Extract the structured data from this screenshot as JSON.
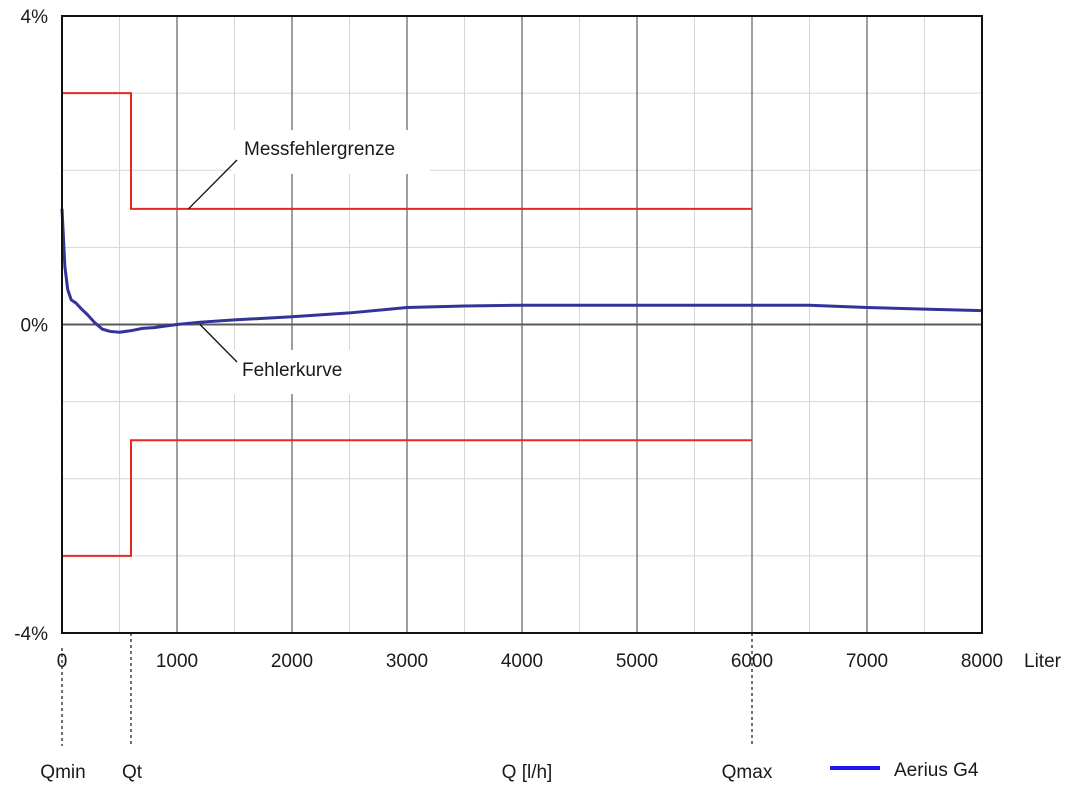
{
  "chart_data": {
    "type": "line",
    "xlim": [
      0,
      8000
    ],
    "ylim": [
      -4,
      4
    ],
    "x_ticks": [
      {
        "value": 0,
        "label": "0"
      },
      {
        "value": 1000,
        "label": "1000"
      },
      {
        "value": 2000,
        "label": "2000"
      },
      {
        "value": 3000,
        "label": "3000"
      },
      {
        "value": 4000,
        "label": "4000"
      },
      {
        "value": 5000,
        "label": "5000"
      },
      {
        "value": 6000,
        "label": "6000"
      },
      {
        "value": 7000,
        "label": "7000"
      },
      {
        "value": 8000,
        "label": "8000"
      }
    ],
    "x_unit_label": "Liter",
    "y_ticks": [
      {
        "value": 4,
        "label": "4%"
      },
      {
        "value": 0,
        "label": "0%"
      },
      {
        "value": -4,
        "label": "-4%"
      }
    ],
    "grid": true,
    "xlabel": "Q [l/h]",
    "markers": [
      {
        "label": "Qmin",
        "x": 0
      },
      {
        "label": "Qt",
        "x": 600
      },
      {
        "label": "Qmax",
        "x": 6000
      }
    ],
    "error_limits": {
      "upper": {
        "x": [
          0,
          600,
          600,
          6000
        ],
        "y": [
          3,
          3,
          1.5,
          1.5
        ]
      },
      "lower": {
        "x": [
          0,
          600,
          600,
          6000
        ],
        "y": [
          -3,
          -3,
          -1.5,
          -1.5
        ]
      },
      "color": "#e8281e"
    },
    "series": [
      {
        "name": "Aerius G4",
        "color": "#333399",
        "legend_color": "#1a1aee",
        "x": [
          0,
          10,
          25,
          50,
          80,
          120,
          170,
          220,
          280,
          350,
          420,
          500,
          600,
          700,
          800,
          900,
          1000,
          1200,
          1500,
          2000,
          2500,
          3000,
          3500,
          4000,
          4500,
          5000,
          5500,
          6000,
          6500,
          7000,
          7500,
          8000
        ],
        "y": [
          1.5,
          1.2,
          0.75,
          0.45,
          0.32,
          0.28,
          0.2,
          0.13,
          0.03,
          -0.06,
          -0.09,
          -0.1,
          -0.08,
          -0.05,
          -0.04,
          -0.02,
          0.0,
          0.03,
          0.06,
          0.1,
          0.15,
          0.22,
          0.24,
          0.25,
          0.25,
          0.25,
          0.25,
          0.25,
          0.25,
          0.22,
          0.2,
          0.18
        ]
      }
    ],
    "annotations": [
      {
        "text": "Messfehlergrenze",
        "target_x": 1100,
        "target_y": 1.5
      },
      {
        "text": "Fehlerkurve",
        "target_x": 1200,
        "target_y": 0.0
      }
    ],
    "legend_position": "bottom-right"
  }
}
